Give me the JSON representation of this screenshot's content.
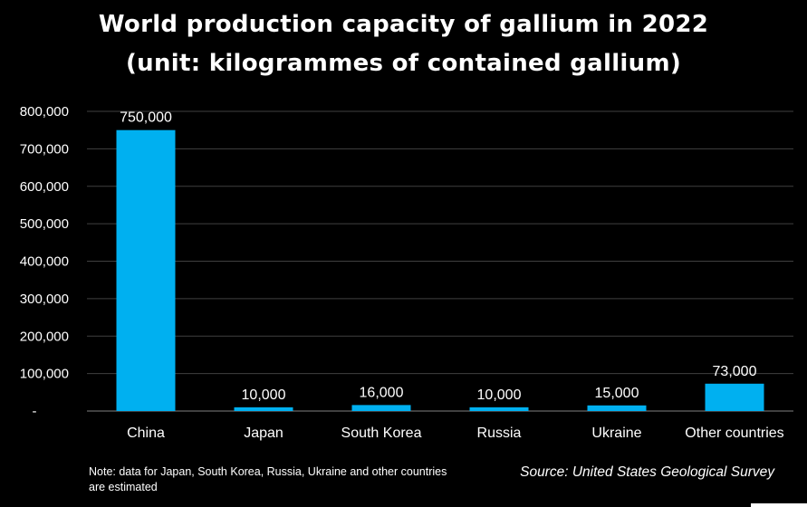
{
  "chart_data": {
    "type": "bar",
    "title": "World production capacity of gallium in 2022",
    "subtitle": "(unit: kilogrammes of contained gallium)",
    "categories": [
      "China",
      "Japan",
      "South Korea",
      "Russia",
      "Ukraine",
      "Other countries"
    ],
    "values": [
      750000,
      10000,
      16000,
      10000,
      15000,
      73000
    ],
    "data_labels": [
      "750,000",
      "10,000",
      "16,000",
      "10,000",
      "15,000",
      "73,000"
    ],
    "ylim": [
      0,
      800000
    ],
    "yticks": [
      0,
      100000,
      200000,
      300000,
      400000,
      500000,
      600000,
      700000,
      800000
    ],
    "ytick_labels": [
      "-",
      "100,000",
      "200,000",
      "300,000",
      "400,000",
      "500,000",
      "600,000",
      "700,000",
      "800,000"
    ],
    "grid": true,
    "bar_color": "#00b0f0",
    "grid_color": "#404040"
  },
  "note": "Note: data for Japan, South Korea, Russia, Ukraine and other countries are estimated",
  "source": "Source: United States Geological Survey"
}
